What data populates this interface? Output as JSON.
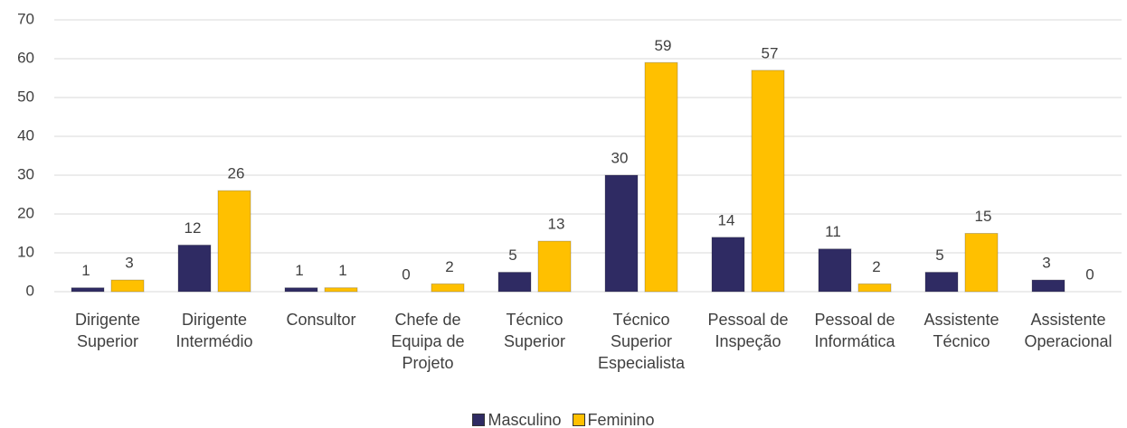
{
  "chart_data": {
    "type": "bar",
    "categories": [
      "Dirigente Superior",
      "Dirigente Intermédio",
      "Consultor",
      "Chefe de Equipa de Projeto",
      "Técnico Superior",
      "Técnico Superior Especialista",
      "Pessoal de Inspeção",
      "Pessoal de Informática",
      "Assistente Técnico",
      "Assistente Operacional"
    ],
    "series": [
      {
        "name": "Masculino",
        "color": "#2f2b63",
        "values": [
          1,
          12,
          1,
          0,
          5,
          30,
          14,
          11,
          5,
          3
        ]
      },
      {
        "name": "Feminino",
        "color": "#ffc000",
        "values": [
          3,
          26,
          1,
          2,
          13,
          59,
          57,
          2,
          15,
          0
        ]
      }
    ],
    "ylim": [
      0,
      70
    ],
    "yticks": [
      0,
      10,
      20,
      30,
      40,
      50,
      60,
      70
    ],
    "grid": true,
    "legend": "bottom"
  }
}
